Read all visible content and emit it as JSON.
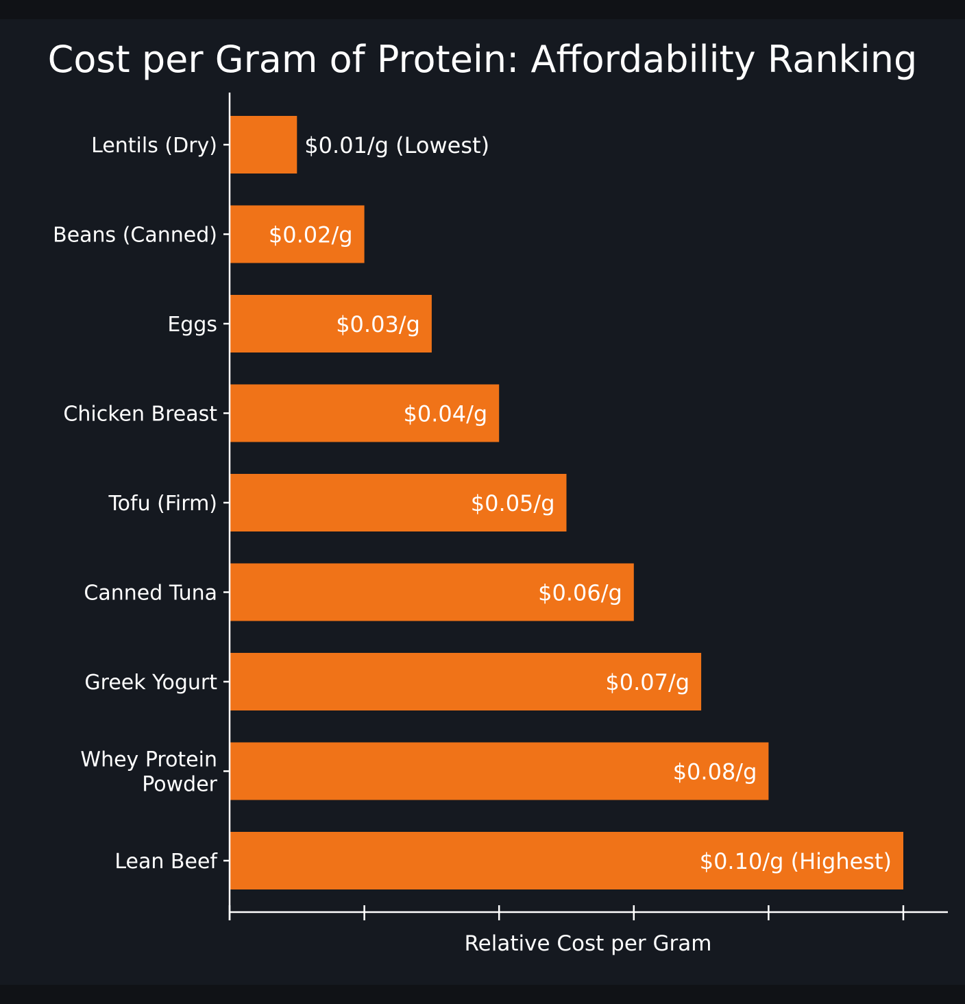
{
  "chart_data": {
    "type": "bar",
    "orientation": "horizontal",
    "title": "Cost per Gram of Protein: Affordability Ranking",
    "xlabel": "Relative Cost per Gram",
    "ylabel": "",
    "unit": "$ per gram of protein",
    "categories": [
      "Lentils (Dry)",
      "Beans (Canned)",
      "Eggs",
      "Chicken Breast",
      "Tofu (Firm)",
      "Canned Tuna",
      "Greek Yogurt",
      "Whey Protein Powder",
      "Lean Beef"
    ],
    "values": [
      0.01,
      0.02,
      0.03,
      0.04,
      0.05,
      0.06,
      0.07,
      0.08,
      0.1
    ],
    "data_labels": [
      "$0.01/g (Lowest)",
      "$0.02/g",
      "$0.03/g",
      "$0.04/g",
      "$0.05/g",
      "$0.06/g",
      "$0.07/g",
      "$0.08/g",
      "$0.10/g (Highest)"
    ],
    "xlim": [
      0,
      0.1
    ],
    "x_ticks": [
      0,
      0.02,
      0.04,
      0.06,
      0.08,
      0.1
    ],
    "x_tick_labels_shown": false,
    "grid": false,
    "legend": "none",
    "colors": {
      "bar": "#f07318",
      "background": "#151920",
      "text": "#ffffff"
    }
  }
}
